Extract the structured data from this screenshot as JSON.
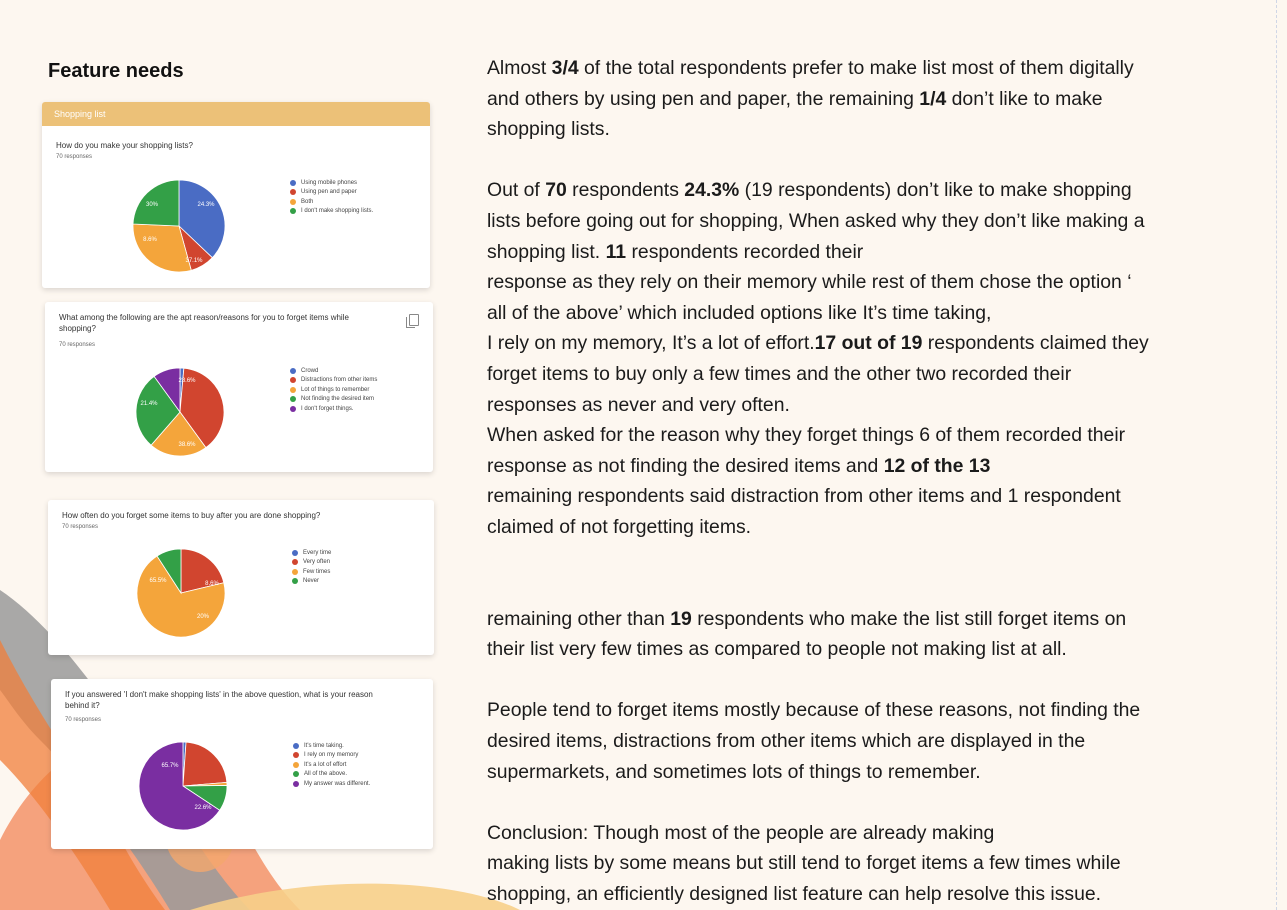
{
  "page": {
    "heading": "Feature needs"
  },
  "survey": {
    "responses_label": "70 responses",
    "cards": [
      {
        "band_title": "Shopping list",
        "question": "How do you make your shopping lists?",
        "legend": [
          "Using mobile phones",
          "Using pen and paper",
          "Both",
          "I don't make shopping lists."
        ],
        "slice_labels": [
          "37.1%",
          "8.6%",
          "30%",
          "24.3%"
        ]
      },
      {
        "question_line1": "What among the following are the apt reason/reasons for you to forget items while",
        "question_line2": "shopping?",
        "legend": [
          "Crowd",
          "Distractions from other items",
          "Lot of things to remember",
          "Not finding the desired item",
          "I don't forget things."
        ],
        "slice_labels": [
          "38.6%",
          "21.4%",
          "28.6%"
        ]
      },
      {
        "question": "How often do you forget some items to buy after you are done shopping?",
        "legend": [
          "Every time",
          "Very often",
          "Few times",
          "Never"
        ],
        "slice_labels": [
          "20%",
          "65.5%",
          "8.6%"
        ]
      },
      {
        "question_line1": "If you answered 'I don't make shopping lists' in the above question, what is your reason",
        "question_line2": "behind it?",
        "legend": [
          "It's time taking.",
          "I rely on my memory",
          "It's a lot of effort",
          "All of the above.",
          "My answer was different."
        ],
        "slice_labels": [
          "22.6%",
          "65.7%"
        ]
      }
    ],
    "colors": {
      "blue": "#4a6cc4",
      "red": "#d1452f",
      "orange": "#f4a53b",
      "green": "#33a047",
      "purple": "#7a2ea1",
      "band": "#ecc178"
    }
  },
  "chart_data": [
    {
      "type": "pie",
      "title": "How do you make your shopping lists?",
      "categories": [
        "Using mobile phones",
        "Using pen and paper",
        "Both",
        "I don't make shopping lists."
      ],
      "values": [
        37.1,
        8.6,
        30,
        24.3
      ],
      "colors": [
        "#4a6cc4",
        "#d1452f",
        "#f4a53b",
        "#33a047"
      ]
    },
    {
      "type": "pie",
      "title": "What among the following are the apt reason/reasons for you to forget items while shopping?",
      "categories": [
        "Crowd",
        "Distractions from other items",
        "Lot of things to remember",
        "Not finding the desired item",
        "I don't forget things."
      ],
      "values": [
        1.4,
        38.6,
        21.4,
        28.6,
        10
      ],
      "colors": [
        "#4a6cc4",
        "#d1452f",
        "#f4a53b",
        "#33a047",
        "#7a2ea1"
      ]
    },
    {
      "type": "pie",
      "title": "How often do you forget some items to buy after you are done shopping?",
      "categories": [
        "Every time",
        "Very often",
        "Few times",
        "Never"
      ],
      "values": [
        0,
        20,
        65.5,
        8.6
      ],
      "colors": [
        "#4a6cc4",
        "#d1452f",
        "#f4a53b",
        "#33a047"
      ]
    },
    {
      "type": "pie",
      "title": "If you answered 'I don't make shopping lists' in the above question, what is your reason behind it?",
      "categories": [
        "It's time taking.",
        "I rely on my memory",
        "It's a lot of effort",
        "All of the above.",
        "My answer was different."
      ],
      "values": [
        1.1,
        22.6,
        1.1,
        9.5,
        65.7
      ],
      "colors": [
        "#4a6cc4",
        "#d1452f",
        "#f4a53b",
        "#33a047",
        "#7a2ea1"
      ]
    }
  ],
  "body": {
    "p1": {
      "a": "Almost ",
      "b": "3/4",
      "c": " of the total respondents prefer to make list most of them digitally",
      "d": "and others by using pen and paper, the remaining ",
      "e": "1/4",
      "f": " don’t like to make",
      "g": "shopping lists."
    },
    "p2": {
      "l1a": "Out of ",
      "l1b": "70",
      "l1c": " respondents ",
      "l1d": "24.3%",
      "l1e": " (19 respondents) don’t like to make shopping",
      "l2": "lists before going out for shopping, When asked why they don’t like making a",
      "l3a": "shopping list. ",
      "l3b": "11",
      "l3c": " respondents recorded their",
      "l4": "response as they rely on their memory while rest of  them chose the option ‘",
      "l5": "all of the above’ which included options like It’s time taking,",
      "l6a": "I rely on my memory, It’s a lot of effort.",
      "l6b": "17 out of 19",
      "l6c": " respondents claimed they",
      "l7": "forget items to buy only a few times and the other two recorded their",
      "l8": "responses as never and very often.",
      "l9": "When asked for the reason why they forget things 6 of them recorded their",
      "l10a": "response as not finding the desired items and ",
      "l10b": "12 of the 13",
      "l11": "remaining respondents said distraction from other items and 1 respondent",
      "l12": "claimed of not forgetting items."
    },
    "p3": {
      "l1a": "remaining other than ",
      "l1b": "19",
      "l1c": " respondents who make the list still forget items on",
      "l2": "their list very few times as compared to people not making list at all."
    },
    "p4": {
      "l1": "People tend to forget items mostly because of these reasons, not finding the",
      "l2": "desired items, distractions from other items which are displayed in the",
      "l3": "supermarkets, and sometimes lots of things to remember."
    },
    "p5": {
      "l1": "Conclusion: Though most of the people are already making",
      "l2": "making lists by some means but still tend to forget items a few times while",
      "l3": "shopping, an efficiently designed list feature can help resolve this issue."
    }
  }
}
